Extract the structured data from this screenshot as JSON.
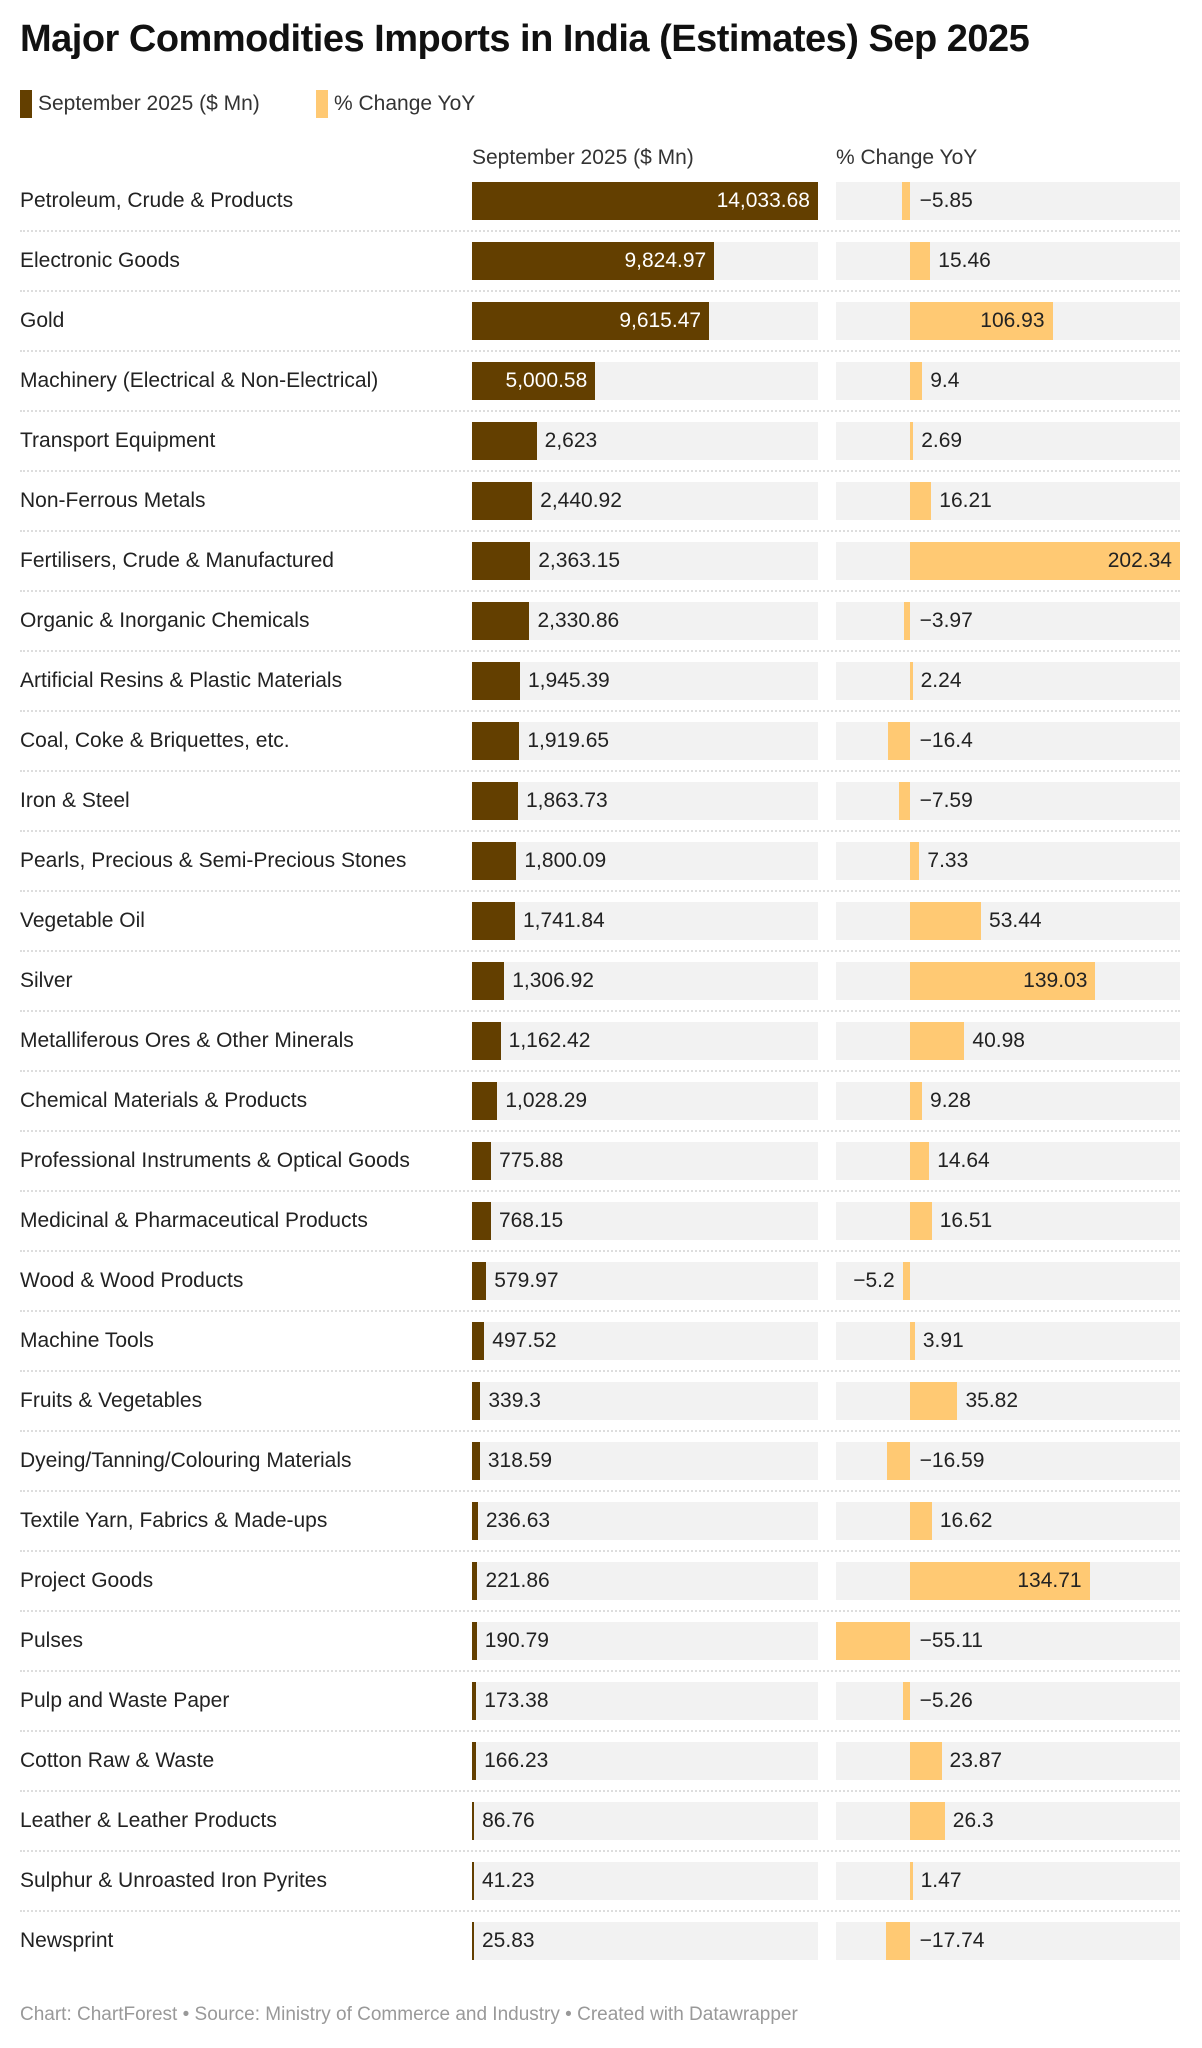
{
  "title": "Major Commodities Imports in India (Estimates) Sep 2025",
  "legend": [
    {
      "label": "September 2025 ($ Mn)",
      "color": "#633f00"
    },
    {
      "label": "% Change YoY",
      "color": "#ffc973"
    }
  ],
  "footer": "Chart: ChartForest • Source: Ministry of Commerce and Industry • Created with Datawrapper",
  "chart_data": {
    "type": "bar",
    "title": "Major Commodities Imports in India (Estimates) Sep 2025",
    "columns": [
      "September 2025 ($ Mn)",
      "% Change YoY"
    ],
    "categories": [
      "Petroleum, Crude & Products",
      "Electronic Goods",
      "Gold",
      "Machinery (Electrical & Non-Electrical)",
      "Transport Equipment",
      "Non-Ferrous Metals",
      "Fertilisers, Crude & Manufactured",
      "Organic & Inorganic Chemicals",
      "Artificial Resins & Plastic Materials",
      "Coal, Coke & Briquettes, etc.",
      "Iron & Steel",
      "Pearls, Precious & Semi-Precious Stones",
      "Vegetable Oil",
      "Silver",
      "Metalliferous Ores & Other Minerals",
      "Chemical Materials & Products",
      "Professional Instruments & Optical Goods",
      "Medicinal & Pharmaceutical Products",
      "Wood & Wood Products",
      "Machine Tools",
      "Fruits & Vegetables",
      "Dyeing/Tanning/Colouring Materials",
      "Textile Yarn, Fabrics & Made-ups",
      "Project Goods",
      "Pulses",
      "Pulp and Waste Paper",
      "Cotton Raw & Waste",
      "Leather & Leather Products",
      "Sulphur & Unroasted Iron Pyrites",
      "Newsprint"
    ],
    "series": [
      {
        "name": "September 2025 ($ Mn)",
        "color": "#633f00",
        "values": [
          14033.68,
          9824.97,
          9615.47,
          5000.58,
          2623,
          2440.92,
          2363.15,
          2330.86,
          1945.39,
          1919.65,
          1863.73,
          1800.09,
          1741.84,
          1306.92,
          1162.42,
          1028.29,
          775.88,
          768.15,
          579.97,
          497.52,
          339.3,
          318.59,
          236.63,
          221.86,
          190.79,
          173.38,
          166.23,
          86.76,
          41.23,
          25.83
        ],
        "labels": [
          "14,033.68",
          "9,824.97",
          "9,615.47",
          "5,000.58",
          "2,623",
          "2,440.92",
          "2,363.15",
          "2,330.86",
          "1,945.39",
          "1,919.65",
          "1,863.73",
          "1,800.09",
          "1,741.84",
          "1,306.92",
          "1,162.42",
          "1,028.29",
          "775.88",
          "768.15",
          "579.97",
          "497.52",
          "339.3",
          "318.59",
          "236.63",
          "221.86",
          "190.79",
          "173.38",
          "166.23",
          "86.76",
          "41.23",
          "25.83"
        ]
      },
      {
        "name": "% Change YoY",
        "color": "#ffc973",
        "values": [
          -5.85,
          15.46,
          106.93,
          9.4,
          2.69,
          16.21,
          202.34,
          -3.97,
          2.24,
          -16.4,
          -7.59,
          7.33,
          53.44,
          139.03,
          40.98,
          9.28,
          14.64,
          16.51,
          -5.2,
          3.91,
          35.82,
          -16.59,
          16.62,
          134.71,
          -55.11,
          -5.26,
          23.87,
          26.3,
          1.47,
          -17.74
        ],
        "labels": [
          "−5.85",
          "15.46",
          "106.93",
          "9.4",
          "2.69",
          "16.21",
          "202.34",
          "−3.97",
          "2.24",
          "−16.4",
          "−7.59",
          "7.33",
          "53.44",
          "139.03",
          "40.98",
          "9.28",
          "14.64",
          "16.51",
          "−5.2",
          "3.91",
          "35.82",
          "−16.59",
          "16.62",
          "134.71",
          "−55.11",
          "−5.26",
          "23.87",
          "26.3",
          "1.47",
          "−17.74"
        ]
      }
    ],
    "xlim_value": [
      0,
      14033.68
    ],
    "xlim_change": [
      -55.11,
      202.34
    ],
    "background_color": "#f2f2f2"
  }
}
